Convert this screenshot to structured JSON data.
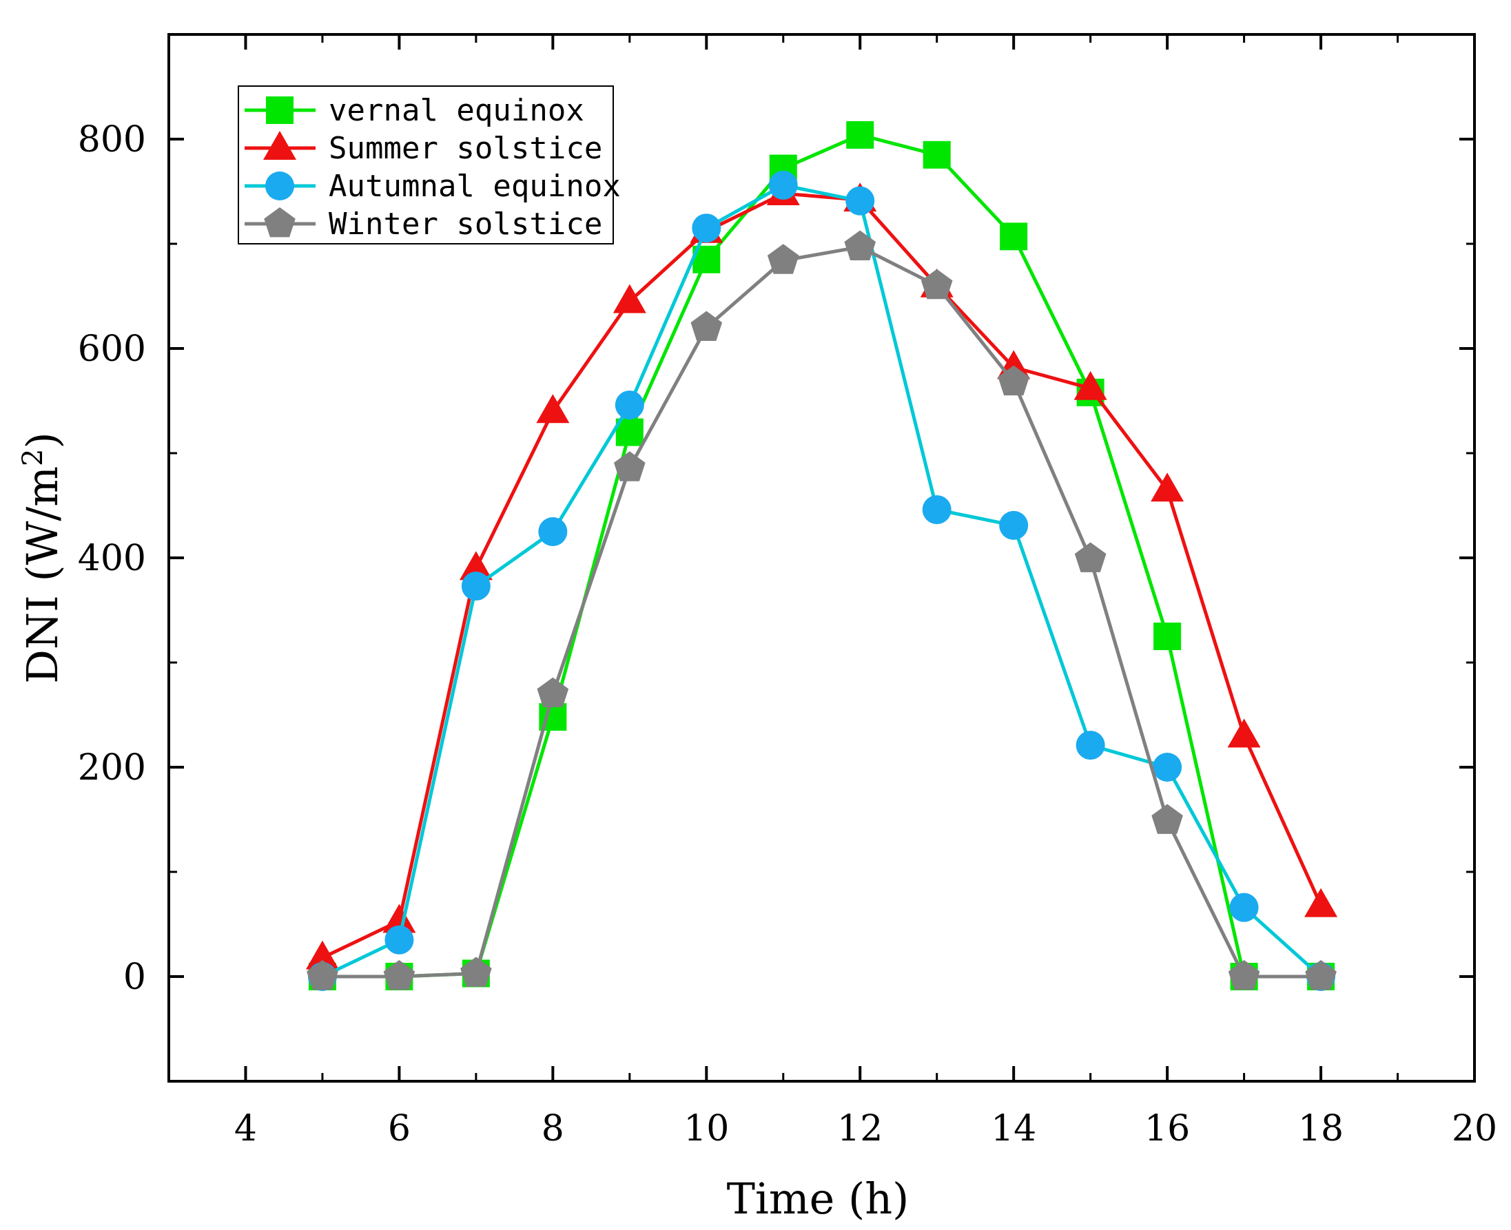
{
  "chart_data": {
    "type": "line",
    "title": "",
    "xlabel": "Time (h)",
    "ylabel_main": "DNI (W/m",
    "ylabel_sup": "2",
    "ylabel_close": ")",
    "xlim": [
      3,
      20
    ],
    "ylim": [
      -100,
      900
    ],
    "x_ticks": [
      4,
      6,
      8,
      10,
      12,
      14,
      16,
      18,
      20
    ],
    "y_ticks": [
      0,
      200,
      400,
      600,
      800
    ],
    "legend_position": "top-left",
    "x": [
      5,
      6,
      7,
      8,
      9,
      10,
      11,
      12,
      13,
      14,
      15,
      16,
      17,
      18
    ],
    "series": [
      {
        "name": "vernal equinox",
        "color": "#00e600",
        "marker": "square",
        "values": [
          0,
          0,
          3,
          248,
          520,
          685,
          772,
          804,
          785,
          707,
          558,
          325,
          0,
          0
        ]
      },
      {
        "name": "Summer solstice",
        "color": "#ee1111",
        "marker": "triangle",
        "values": [
          18,
          53,
          390,
          540,
          645,
          712,
          748,
          742,
          660,
          582,
          562,
          465,
          230,
          68
        ]
      },
      {
        "name": "Autumnal equinox",
        "color": "#00c8d7",
        "marker_color": "#1aaaf0",
        "marker": "circle",
        "values": [
          0,
          35,
          373,
          425,
          546,
          715,
          756,
          741,
          446,
          431,
          221,
          200,
          66,
          0
        ]
      },
      {
        "name": "Winter solstice",
        "color": "#808080",
        "marker": "pentagon",
        "values": [
          0,
          0,
          3,
          270,
          486,
          620,
          684,
          697,
          660,
          568,
          399,
          149,
          0,
          0
        ]
      }
    ]
  }
}
